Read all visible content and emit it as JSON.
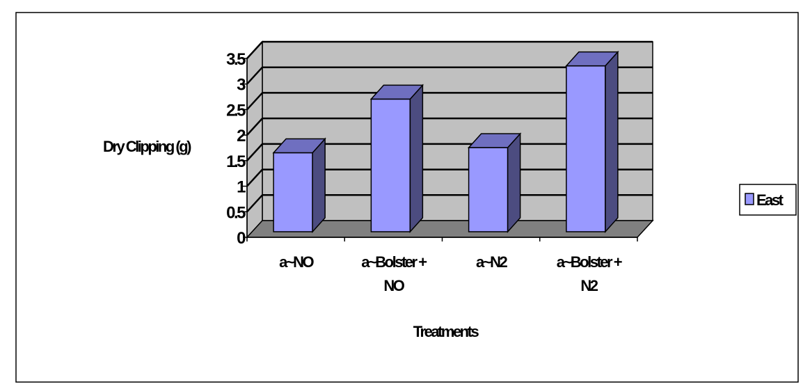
{
  "chart_data": {
    "type": "bar",
    "categories": [
      [
        "a~NO"
      ],
      [
        "a~Bolster +",
        "NO"
      ],
      [
        "a~N2"
      ],
      [
        "a~Bolster +",
        "N2"
      ]
    ],
    "series": [
      {
        "name": "East",
        "values": [
          1.6,
          2.65,
          1.7,
          3.3
        ],
        "color": "#9999ff",
        "side_color": "#4c4c80",
        "top_color": "#6f6fc0"
      }
    ],
    "xlabel": "Treatments",
    "ylabel": "Dry Clipping (g)",
    "ylim": [
      0,
      3.5
    ],
    "yticks": [
      "0",
      "0.5",
      "1",
      "1.5",
      "2",
      "2.5",
      "3",
      "3.5"
    ],
    "grid": true,
    "legend": "right",
    "wall_color": "#c0c0c0",
    "floor_color": "#808080"
  }
}
